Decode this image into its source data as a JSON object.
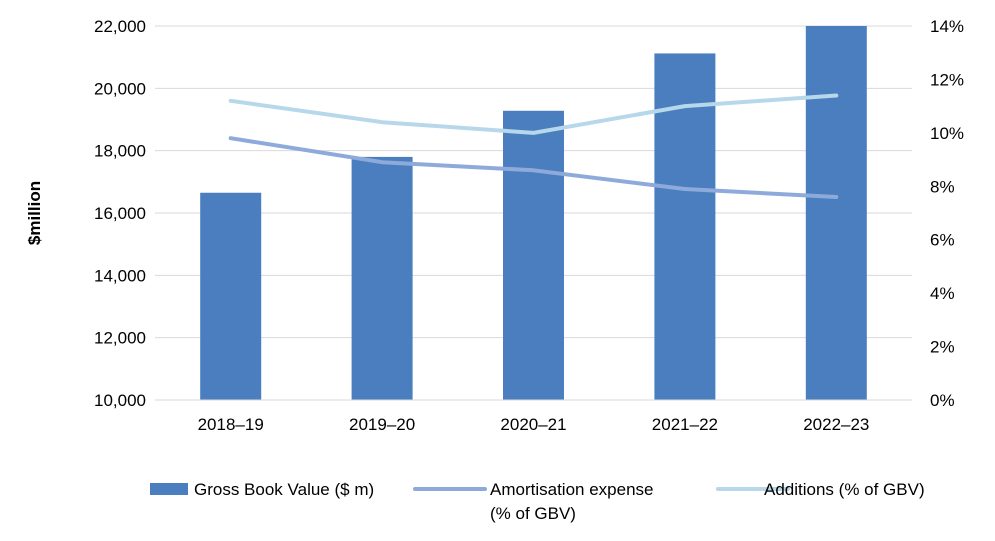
{
  "chart_data": {
    "type": "bar",
    "categories": [
      "2018–19",
      "2019–20",
      "2020–21",
      "2021–22",
      "2022–23"
    ],
    "ylabel": "$million",
    "ylim": [
      10000,
      22000
    ],
    "y_ticks": [
      "10,000",
      "12,000",
      "14,000",
      "16,000",
      "18,000",
      "20,000",
      "22,000"
    ],
    "y2lim": [
      0,
      14
    ],
    "y2_ticks": [
      "0%",
      "2%",
      "4%",
      "6%",
      "8%",
      "10%",
      "12%",
      "14%"
    ],
    "grid": true,
    "legend_position": "bottom",
    "series": [
      {
        "name": "Gross Book Value ($ m)",
        "type": "bar",
        "axis": "left",
        "color": "#4a7ebf",
        "values": [
          16650,
          17800,
          19280,
          21120,
          22000
        ]
      },
      {
        "name": "Amortisation expense (% of GBV)",
        "legend_lines": [
          "Amortisation expense",
          "(% of GBV)"
        ],
        "type": "line",
        "axis": "right",
        "color": "#8eaadb",
        "values": [
          9.8,
          8.9,
          8.6,
          7.9,
          7.6
        ]
      },
      {
        "name": "Additions (% of GBV)",
        "type": "line",
        "axis": "right",
        "color": "#b7d7ea",
        "values": [
          11.2,
          10.4,
          10.0,
          11.0,
          11.4
        ]
      }
    ]
  }
}
